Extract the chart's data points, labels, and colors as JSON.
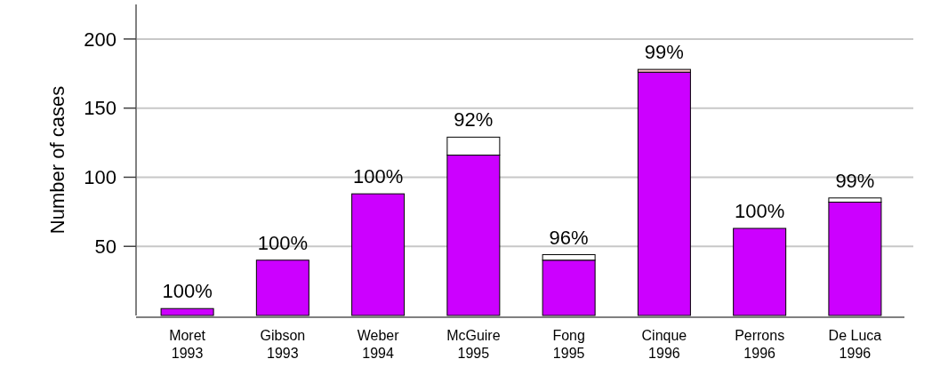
{
  "chart_data": {
    "type": "bar",
    "ylabel": "Number of cases",
    "categories": [
      "Moret 1993",
      "Gibson 1993",
      "Weber 1994",
      "McGuire 1995",
      "Fong 1995",
      "Cinque 1996",
      "Perrons 1996",
      "De Luca 1996"
    ],
    "stacked": true,
    "series": [
      {
        "colors": [
          "#cc00ff",
          "#cc00ff",
          "#cc00ff",
          "#cc00ff",
          "#cc00ff",
          "#cc00ff",
          "#cc00ff",
          "#cc00ff"
        ],
        "values": [
          5,
          40,
          88,
          116,
          40,
          176,
          63,
          82
        ]
      },
      {
        "colors": [
          "#ffffff",
          "#ffffff",
          "#ffffff",
          "#ffffff",
          "#ffffff",
          "#ffc0cb",
          "#ffffff",
          "#ffffff"
        ],
        "values": [
          0,
          0,
          0,
          13,
          4,
          2,
          0,
          3
        ]
      }
    ],
    "annotations": [
      {
        "text": "100%",
        "x": "Moret 1993",
        "y": 5
      },
      {
        "text": "100%",
        "x": "Gibson 1993",
        "y": 40
      },
      {
        "text": "100%",
        "x": "Weber 1994",
        "y": 88
      },
      {
        "text": "92%",
        "x": "McGuire 1995",
        "y": 129
      },
      {
        "text": "96%",
        "x": "Fong 1995",
        "y": 44
      },
      {
        "text": "99%",
        "x": "Cinque 1996",
        "y": 178
      },
      {
        "text": "100%",
        "x": "Perrons 1996",
        "y": 63
      },
      {
        "text": "99%",
        "x": "De Luca 1996",
        "y": 85
      }
    ],
    "ylim": [
      0,
      225
    ],
    "yticks": [
      50,
      100,
      150,
      200
    ],
    "grid": "y"
  }
}
